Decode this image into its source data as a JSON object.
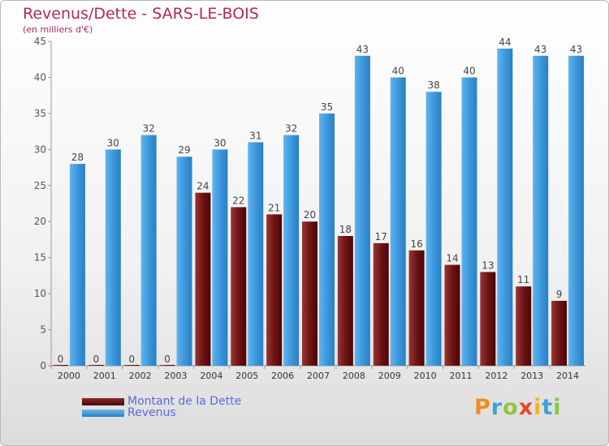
{
  "chart_data": {
    "type": "bar",
    "title": "Revenus/Dette - SARS-LE-BOIS",
    "subtitle": "(en milliers d'€)",
    "categories": [
      "2000",
      "2001",
      "2002",
      "2003",
      "2004",
      "2005",
      "2006",
      "2007",
      "2008",
      "2009",
      "2010",
      "2011",
      "2012",
      "2013",
      "2014"
    ],
    "series": [
      {
        "name": "Montant de la Dette",
        "color": "#7a1f1f",
        "values": [
          0,
          0,
          0,
          0,
          24,
          22,
          21,
          20,
          18,
          17,
          16,
          14,
          13,
          11,
          9
        ]
      },
      {
        "name": "Revenus",
        "color": "#3d98dc",
        "values": [
          28,
          30,
          32,
          29,
          30,
          31,
          32,
          35,
          43,
          40,
          38,
          40,
          44,
          43,
          43
        ]
      }
    ],
    "ylim": [
      0,
      45
    ],
    "yticks": [
      0,
      5,
      10,
      15,
      20,
      25,
      30,
      35,
      40,
      45
    ],
    "grid": false,
    "legend_position": "bottom-left"
  },
  "logo": {
    "letters": [
      "P",
      "r",
      "o",
      "x",
      "i",
      "t",
      "i"
    ]
  }
}
